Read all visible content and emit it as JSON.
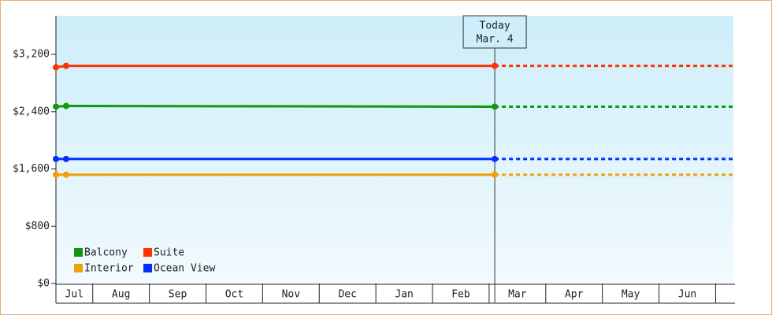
{
  "chart_data": {
    "type": "line",
    "categories": [
      "Jul",
      "Aug",
      "Sep",
      "Oct",
      "Nov",
      "Dec",
      "Jan",
      "Feb",
      "Mar",
      "Apr",
      "May",
      "Jun"
    ],
    "x": [
      0.35,
      0.53,
      8.1
    ],
    "xlim": [
      0.35,
      12.3
    ],
    "ylim": [
      0,
      3740
    ],
    "yticks": [
      {
        "value": 0,
        "label": "$0"
      },
      {
        "value": 800,
        "label": "$800"
      },
      {
        "value": 1600,
        "label": "$1,600"
      },
      {
        "value": 2400,
        "label": "$2,400"
      },
      {
        "value": 3200,
        "label": "$3,200"
      }
    ],
    "series": [
      {
        "name": "Balcony",
        "color": "#109910",
        "values": [
          2470,
          2480,
          2470
        ]
      },
      {
        "name": "Suite",
        "color": "#ff3300",
        "values": [
          3020,
          3040,
          3040
        ]
      },
      {
        "name": "Interior",
        "color": "#f0a000",
        "values": [
          1520,
          1520,
          1520
        ]
      },
      {
        "name": "Ocean View",
        "color": "#0030ff",
        "values": [
          1740,
          1740,
          1740
        ]
      }
    ],
    "today": {
      "x": 8.1,
      "label": [
        "Today",
        "Mar. 4"
      ]
    },
    "forecast": true
  }
}
